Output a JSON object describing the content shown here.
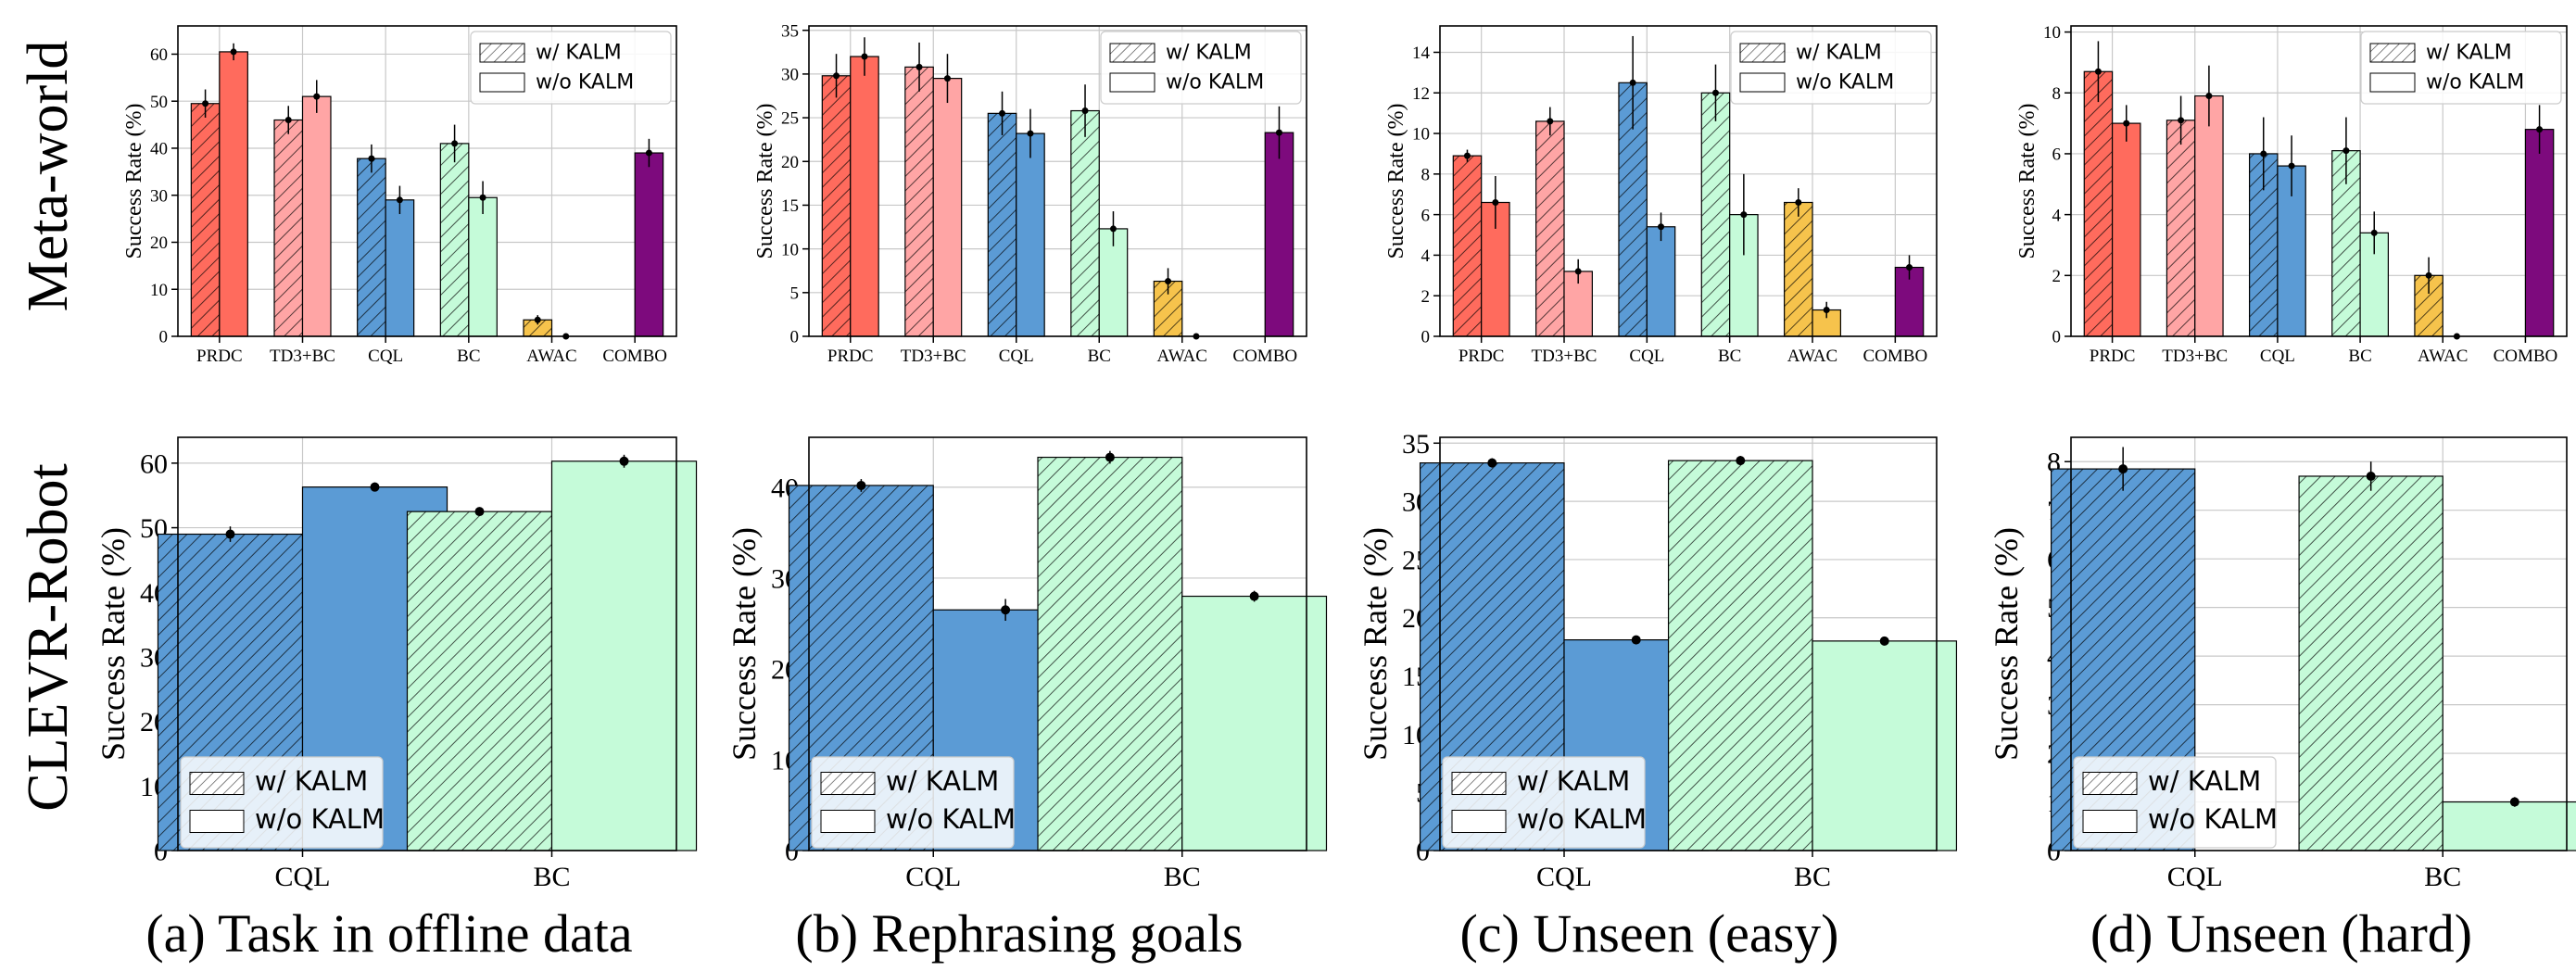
{
  "row_labels": [
    "Meta-world",
    "CLEVR-Robot"
  ],
  "column_captions": [
    "(a) Task in offline data",
    "(b) Rephrasing goals",
    "(c) Unseen (easy)",
    "(d) Unseen (hard)"
  ],
  "legend": {
    "with": "w/ KALM",
    "without": "w/o KALM"
  },
  "colors": {
    "PRDC": "#ff6b5d",
    "TD3+BC": "#ffa5a5",
    "CQL": "#5b9bd5",
    "BC": "#c5fbd9",
    "AWAC": "#f6c34c",
    "COMBO": "#7d0a7d",
    "edge": "#000000",
    "grid": "#c8c8c8"
  },
  "chart_data": [
    {
      "type": "bar",
      "ylabel": "Success Rate (%)",
      "ylim": [
        0,
        66
      ],
      "yticks": [
        0,
        10,
        20,
        30,
        40,
        50,
        60
      ],
      "categories": [
        "PRDC",
        "TD3+BC",
        "CQL",
        "BC",
        "AWAC",
        "COMBO"
      ],
      "series": [
        {
          "name": "w/ KALM",
          "values": [
            49.5,
            46,
            37.8,
            41,
            3.5,
            null
          ],
          "errors": [
            3,
            3,
            3,
            4,
            1,
            null
          ]
        },
        {
          "name": "w/o KALM",
          "values": [
            60.5,
            51,
            29,
            29.5,
            0,
            39
          ],
          "errors": [
            1.8,
            3.5,
            3,
            3.5,
            0,
            3
          ]
        }
      ],
      "grid": true,
      "legend_position": "top-right"
    },
    {
      "type": "bar",
      "ylabel": "Success Rate (%)",
      "ylim": [
        0,
        35.5
      ],
      "yticks": [
        0,
        5,
        10,
        15,
        20,
        25,
        30,
        35
      ],
      "categories": [
        "PRDC",
        "TD3+BC",
        "CQL",
        "BC",
        "AWAC",
        "COMBO"
      ],
      "series": [
        {
          "name": "w/ KALM",
          "values": [
            29.8,
            30.8,
            25.5,
            25.8,
            6.3,
            null
          ],
          "errors": [
            2.5,
            2.8,
            2.5,
            3,
            1.5,
            null
          ]
        },
        {
          "name": "w/o KALM",
          "values": [
            32,
            29.5,
            23.2,
            12.3,
            0,
            23.3
          ],
          "errors": [
            2.2,
            2.8,
            2.8,
            2,
            0,
            3
          ]
        }
      ],
      "grid": true,
      "legend_position": "top-right"
    },
    {
      "type": "bar",
      "ylabel": "Success Rate (%)",
      "ylim": [
        0,
        15.3
      ],
      "yticks": [
        0,
        2,
        4,
        6,
        8,
        10,
        12,
        14
      ],
      "categories": [
        "PRDC",
        "TD3+BC",
        "CQL",
        "BC",
        "AWAC",
        "COMBO"
      ],
      "series": [
        {
          "name": "w/ KALM",
          "values": [
            8.9,
            10.6,
            12.5,
            12,
            6.6,
            null
          ],
          "errors": [
            0.3,
            0.7,
            2.3,
            1.4,
            0.7,
            null
          ]
        },
        {
          "name": "w/o KALM",
          "values": [
            6.6,
            3.2,
            5.4,
            6,
            1.3,
            3.4
          ],
          "errors": [
            1.3,
            0.6,
            0.7,
            2,
            0.4,
            0.6
          ]
        }
      ],
      "grid": true,
      "legend_position": "top-right"
    },
    {
      "type": "bar",
      "ylabel": "Success Rate (%)",
      "ylim": [
        0,
        10.2
      ],
      "yticks": [
        0,
        2,
        4,
        6,
        8,
        10
      ],
      "categories": [
        "PRDC",
        "TD3+BC",
        "CQL",
        "BC",
        "AWAC",
        "COMBO"
      ],
      "series": [
        {
          "name": "w/ KALM",
          "values": [
            8.7,
            7.1,
            6,
            6.1,
            2,
            null
          ],
          "errors": [
            1,
            0.8,
            1.2,
            1.1,
            0.6,
            null
          ]
        },
        {
          "name": "w/o KALM",
          "values": [
            7,
            7.9,
            5.6,
            3.4,
            0,
            6.8
          ],
          "errors": [
            0.6,
            1,
            1,
            0.7,
            0,
            0.8
          ]
        }
      ],
      "grid": true,
      "legend_position": "top-right"
    },
    {
      "type": "bar",
      "ylabel": "Success Rate (%)",
      "ylim": [
        0,
        64
      ],
      "yticks": [
        0,
        10,
        20,
        30,
        40,
        50,
        60
      ],
      "categories": [
        "CQL",
        "BC"
      ],
      "series": [
        {
          "name": "w/ KALM",
          "values": [
            49,
            52.5
          ],
          "errors": [
            1.2,
            0.6
          ]
        },
        {
          "name": "w/o KALM",
          "values": [
            56.3,
            60.3
          ],
          "errors": [
            0.7,
            1
          ]
        }
      ],
      "grid": true,
      "legend_position": "bottom-left"
    },
    {
      "type": "bar",
      "ylabel": "Success Rate (%)",
      "ylim": [
        0,
        45.5
      ],
      "yticks": [
        0,
        10,
        20,
        30,
        40
      ],
      "categories": [
        "CQL",
        "BC"
      ],
      "series": [
        {
          "name": "w/ KALM",
          "values": [
            40.2,
            43.3
          ],
          "errors": [
            0.7,
            0.7
          ]
        },
        {
          "name": "w/o KALM",
          "values": [
            26.5,
            28
          ],
          "errors": [
            1.2,
            0.6
          ]
        }
      ],
      "grid": true,
      "legend_position": "bottom-left"
    },
    {
      "type": "bar",
      "ylabel": "Success Rate (%)",
      "ylim": [
        0,
        35.5
      ],
      "yticks": [
        0,
        5,
        10,
        15,
        20,
        25,
        30,
        35
      ],
      "categories": [
        "CQL",
        "BC"
      ],
      "series": [
        {
          "name": "w/ KALM",
          "values": [
            33.3,
            33.5
          ],
          "errors": [
            0.4,
            0.4
          ]
        },
        {
          "name": "w/o KALM",
          "values": [
            18.1,
            18
          ],
          "errors": [
            0.2,
            0.3
          ]
        }
      ],
      "grid": true,
      "legend_position": "bottom-left"
    },
    {
      "type": "bar",
      "ylabel": "Success Rate (%)",
      "ylim": [
        0,
        8.5
      ],
      "yticks": [
        0,
        1,
        2,
        3,
        4,
        5,
        6,
        7,
        8
      ],
      "categories": [
        "CQL",
        "BC"
      ],
      "series": [
        {
          "name": "w/ KALM",
          "values": [
            7.85,
            7.7
          ],
          "errors": [
            0.45,
            0.3
          ]
        },
        {
          "name": "w/o KALM",
          "values": [
            null,
            1
          ],
          "errors": [
            null,
            0.1
          ]
        }
      ],
      "grid": true,
      "legend_position": "bottom-left"
    }
  ]
}
